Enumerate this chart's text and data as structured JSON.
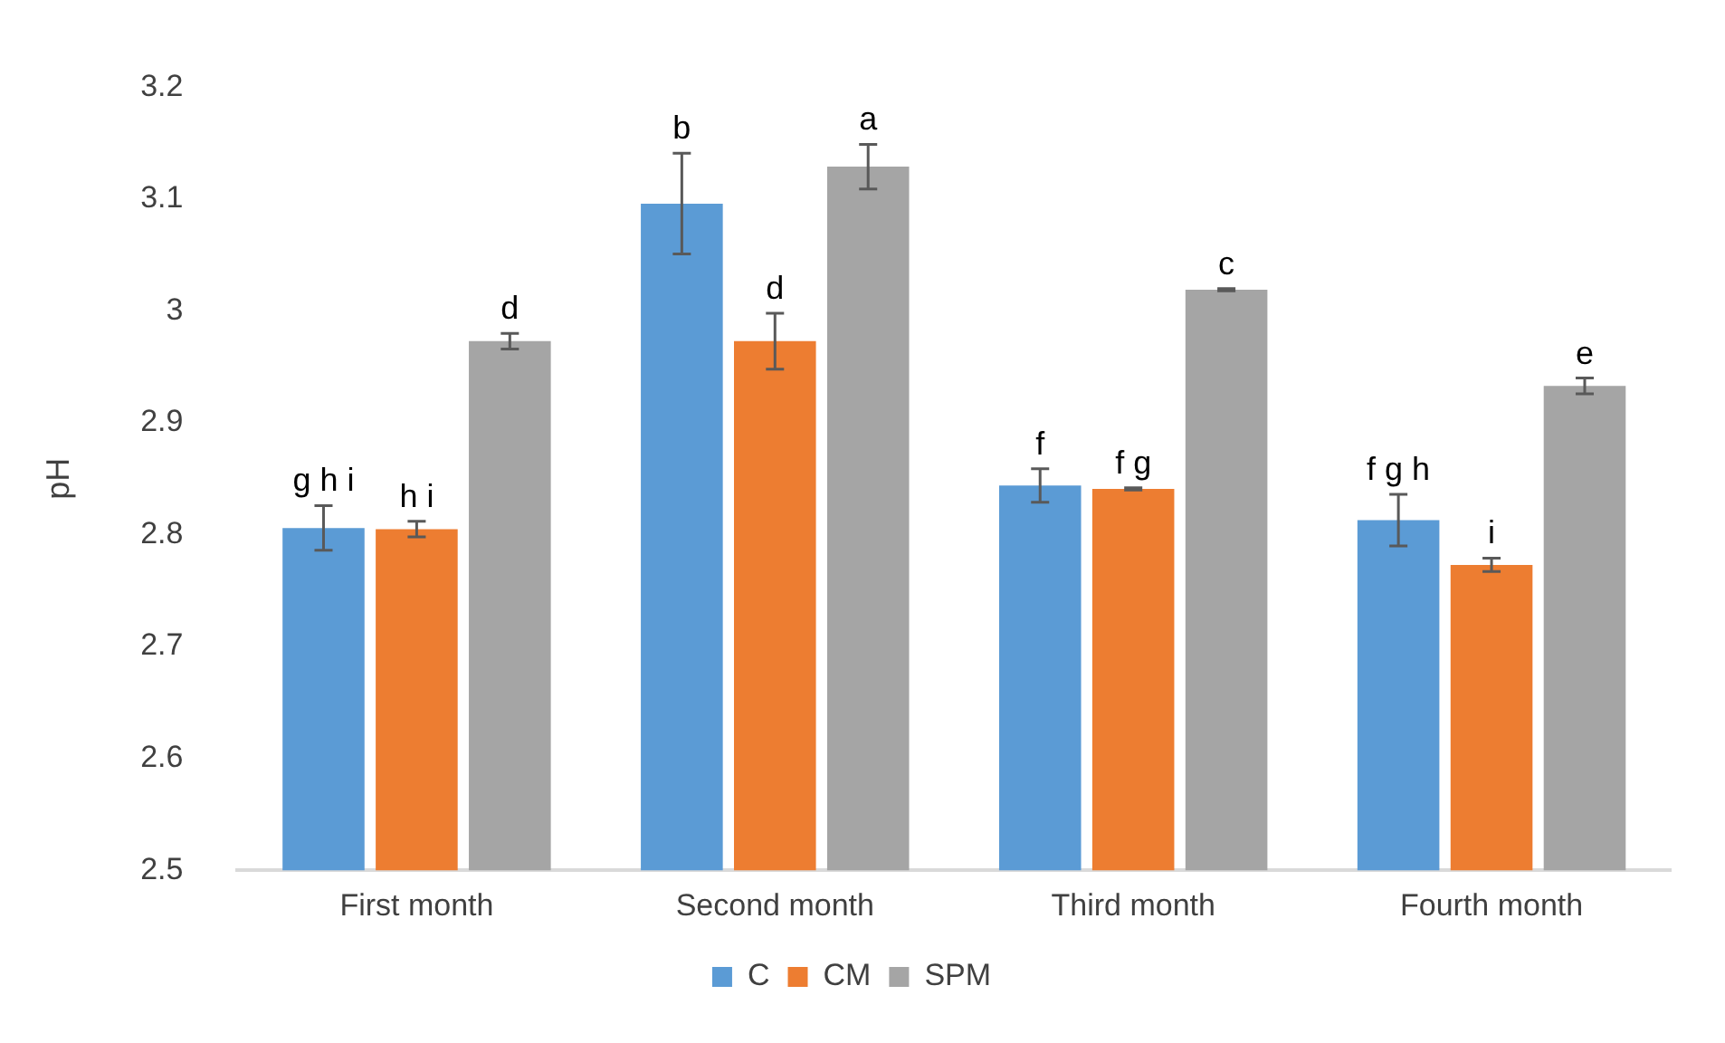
{
  "chart_data": {
    "type": "bar",
    "ylabel": "pH",
    "categories": [
      "First month",
      "Second month",
      "Third month",
      "Fourth month"
    ],
    "series": [
      {
        "name": "C",
        "color": "#5b9bd5",
        "values": [
          2.806,
          3.096,
          2.844,
          2.813
        ],
        "errors": [
          0.02,
          0.045,
          0.015,
          0.023
        ],
        "value_labels": [
          "g h i",
          "b",
          "f",
          "f g h"
        ]
      },
      {
        "name": "CM",
        "color": "#ed7d31",
        "values": [
          2.805,
          2.973,
          2.841,
          2.773
        ],
        "errors": [
          0.007,
          0.025,
          0.001,
          0.006
        ],
        "value_labels": [
          "h i",
          "d",
          "f g",
          "i"
        ]
      },
      {
        "name": "SPM",
        "color": "#a5a5a5",
        "values": [
          2.973,
          3.129,
          3.019,
          2.933
        ],
        "errors": [
          0.007,
          0.02,
          0.001,
          0.007
        ],
        "value_labels": [
          "d",
          "a",
          "c",
          "e"
        ]
      }
    ],
    "ylim": [
      2.5,
      3.2
    ],
    "yticks": [
      2.5,
      2.6,
      2.7,
      2.8,
      2.9,
      3,
      3.1,
      3.2
    ],
    "grid": false,
    "legend": "bottom"
  }
}
